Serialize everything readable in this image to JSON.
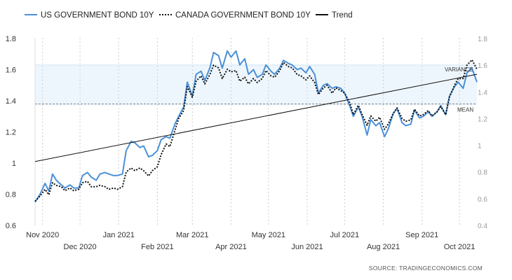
{
  "chart_data": {
    "type": "line",
    "title": "",
    "legend_position": "top-left",
    "grid": "vertical dashed",
    "source": "SOURCE:  TRADINGECONOMICS.COM",
    "x_range": [
      "2020-10-26",
      "2021-10-15"
    ],
    "x_ticks": [
      {
        "label": "Nov 2020",
        "date": "2020-11-01"
      },
      {
        "label": "Dec 2020",
        "date": "2020-12-01"
      },
      {
        "label": "Jan 2021",
        "date": "2021-01-01"
      },
      {
        "label": "Feb 2021",
        "date": "2021-02-01"
      },
      {
        "label": "Mar 2021",
        "date": "2021-03-01"
      },
      {
        "label": "Apr 2021",
        "date": "2021-04-01"
      },
      {
        "label": "May 2021",
        "date": "2021-05-01"
      },
      {
        "label": "Jun 2021",
        "date": "2021-06-01"
      },
      {
        "label": "Jul 2021",
        "date": "2021-07-01"
      },
      {
        "label": "Aug 2021",
        "date": "2021-08-01"
      },
      {
        "label": "Sep 2021",
        "date": "2021-09-01"
      },
      {
        "label": "Oct 2021",
        "date": "2021-10-01"
      }
    ],
    "y_left": {
      "min": 0.6,
      "max": 1.8,
      "ticks": [
        "1.8",
        "1.6",
        "1.4",
        "1.2",
        "1",
        "0.8",
        "0.6"
      ]
    },
    "y_right": {
      "min": 0.4,
      "max": 1.8,
      "ticks": [
        "1.8",
        "1.6",
        "1.4",
        "1.2",
        "1",
        "0.8",
        "0.6",
        "0.4"
      ]
    },
    "variance_band": [
      1.37,
      1.63
    ],
    "mean": 1.38,
    "annotations": {
      "variance": "VARIANCE",
      "mean": "MEAN"
    },
    "trend": {
      "start": [
        "2020-10-26",
        1.01
      ],
      "end": [
        "2021-10-15",
        1.57
      ]
    },
    "series": [
      {
        "name": "US GOVERNMENT BOND 10Y",
        "axis": "left",
        "color": "#4a90d9",
        "style": "solid",
        "points": [
          [
            "2020-10-26",
            0.75
          ],
          [
            "2020-10-30",
            0.8
          ],
          [
            "2020-11-03",
            0.87
          ],
          [
            "2020-11-06",
            0.82
          ],
          [
            "2020-11-09",
            0.93
          ],
          [
            "2020-11-12",
            0.89
          ],
          [
            "2020-11-16",
            0.86
          ],
          [
            "2020-11-19",
            0.84
          ],
          [
            "2020-11-23",
            0.86
          ],
          [
            "2020-11-26",
            0.84
          ],
          [
            "2020-11-30",
            0.84
          ],
          [
            "2020-12-03",
            0.92
          ],
          [
            "2020-12-07",
            0.94
          ],
          [
            "2020-12-10",
            0.91
          ],
          [
            "2020-12-14",
            0.89
          ],
          [
            "2020-12-17",
            0.93
          ],
          [
            "2020-12-21",
            0.94
          ],
          [
            "2020-12-24",
            0.93
          ],
          [
            "2020-12-28",
            0.92
          ],
          [
            "2020-12-31",
            0.92
          ],
          [
            "2021-01-04",
            0.93
          ],
          [
            "2021-01-07",
            1.08
          ],
          [
            "2021-01-11",
            1.14
          ],
          [
            "2021-01-14",
            1.13
          ],
          [
            "2021-01-18",
            1.1
          ],
          [
            "2021-01-21",
            1.11
          ],
          [
            "2021-01-25",
            1.04
          ],
          [
            "2021-01-28",
            1.05
          ],
          [
            "2021-02-01",
            1.08
          ],
          [
            "2021-02-04",
            1.15
          ],
          [
            "2021-02-08",
            1.17
          ],
          [
            "2021-02-11",
            1.16
          ],
          [
            "2021-02-15",
            1.25
          ],
          [
            "2021-02-18",
            1.3
          ],
          [
            "2021-02-22",
            1.36
          ],
          [
            "2021-02-25",
            1.52
          ],
          [
            "2021-03-01",
            1.43
          ],
          [
            "2021-03-04",
            1.57
          ],
          [
            "2021-03-08",
            1.59
          ],
          [
            "2021-03-11",
            1.53
          ],
          [
            "2021-03-15",
            1.61
          ],
          [
            "2021-03-18",
            1.71
          ],
          [
            "2021-03-22",
            1.69
          ],
          [
            "2021-03-25",
            1.61
          ],
          [
            "2021-03-29",
            1.72
          ],
          [
            "2021-04-01",
            1.68
          ],
          [
            "2021-04-05",
            1.72
          ],
          [
            "2021-04-08",
            1.63
          ],
          [
            "2021-04-12",
            1.67
          ],
          [
            "2021-04-15",
            1.57
          ],
          [
            "2021-04-19",
            1.6
          ],
          [
            "2021-04-22",
            1.55
          ],
          [
            "2021-04-26",
            1.57
          ],
          [
            "2021-04-29",
            1.63
          ],
          [
            "2021-05-03",
            1.59
          ],
          [
            "2021-05-06",
            1.57
          ],
          [
            "2021-05-10",
            1.61
          ],
          [
            "2021-05-13",
            1.66
          ],
          [
            "2021-05-17",
            1.64
          ],
          [
            "2021-05-20",
            1.63
          ],
          [
            "2021-05-24",
            1.6
          ],
          [
            "2021-05-27",
            1.61
          ],
          [
            "2021-05-31",
            1.58
          ],
          [
            "2021-06-03",
            1.62
          ],
          [
            "2021-06-07",
            1.57
          ],
          [
            "2021-06-10",
            1.45
          ],
          [
            "2021-06-14",
            1.5
          ],
          [
            "2021-06-17",
            1.51
          ],
          [
            "2021-06-21",
            1.48
          ],
          [
            "2021-06-24",
            1.49
          ],
          [
            "2021-06-28",
            1.48
          ],
          [
            "2021-07-01",
            1.45
          ],
          [
            "2021-07-05",
            1.37
          ],
          [
            "2021-07-08",
            1.3
          ],
          [
            "2021-07-12",
            1.36
          ],
          [
            "2021-07-15",
            1.3
          ],
          [
            "2021-07-19",
            1.18
          ],
          [
            "2021-07-22",
            1.28
          ],
          [
            "2021-07-26",
            1.24
          ],
          [
            "2021-07-29",
            1.26
          ],
          [
            "2021-08-02",
            1.17
          ],
          [
            "2021-08-05",
            1.22
          ],
          [
            "2021-08-09",
            1.32
          ],
          [
            "2021-08-12",
            1.35
          ],
          [
            "2021-08-16",
            1.26
          ],
          [
            "2021-08-19",
            1.24
          ],
          [
            "2021-08-23",
            1.25
          ],
          [
            "2021-08-26",
            1.34
          ],
          [
            "2021-08-30",
            1.29
          ],
          [
            "2021-09-02",
            1.3
          ],
          [
            "2021-09-06",
            1.33
          ],
          [
            "2021-09-09",
            1.3
          ],
          [
            "2021-09-13",
            1.33
          ],
          [
            "2021-09-16",
            1.37
          ],
          [
            "2021-09-20",
            1.31
          ],
          [
            "2021-09-23",
            1.43
          ],
          [
            "2021-09-27",
            1.49
          ],
          [
            "2021-09-30",
            1.52
          ],
          [
            "2021-10-04",
            1.48
          ],
          [
            "2021-10-07",
            1.58
          ],
          [
            "2021-10-11",
            1.61
          ],
          [
            "2021-10-15",
            1.52
          ]
        ]
      },
      {
        "name": "CANADA GOVERNMENT BOND 10Y",
        "axis": "right",
        "color": "#111111",
        "style": "dotted",
        "points": [
          [
            "2020-10-26",
            0.58
          ],
          [
            "2020-10-30",
            0.62
          ],
          [
            "2020-11-03",
            0.67
          ],
          [
            "2020-11-06",
            0.63
          ],
          [
            "2020-11-09",
            0.72
          ],
          [
            "2020-11-12",
            0.7
          ],
          [
            "2020-11-16",
            0.69
          ],
          [
            "2020-11-19",
            0.66
          ],
          [
            "2020-11-23",
            0.68
          ],
          [
            "2020-11-26",
            0.66
          ],
          [
            "2020-11-30",
            0.67
          ],
          [
            "2020-12-03",
            0.72
          ],
          [
            "2020-12-07",
            0.73
          ],
          [
            "2020-12-10",
            0.69
          ],
          [
            "2020-12-14",
            0.69
          ],
          [
            "2020-12-17",
            0.7
          ],
          [
            "2020-12-21",
            0.69
          ],
          [
            "2020-12-24",
            0.67
          ],
          [
            "2020-12-28",
            0.68
          ],
          [
            "2020-12-31",
            0.67
          ],
          [
            "2021-01-04",
            0.69
          ],
          [
            "2021-01-07",
            0.8
          ],
          [
            "2021-01-11",
            0.83
          ],
          [
            "2021-01-14",
            0.81
          ],
          [
            "2021-01-18",
            0.83
          ],
          [
            "2021-01-21",
            0.81
          ],
          [
            "2021-01-25",
            0.77
          ],
          [
            "2021-01-28",
            0.81
          ],
          [
            "2021-02-01",
            0.84
          ],
          [
            "2021-02-04",
            0.93
          ],
          [
            "2021-02-08",
            1.01
          ],
          [
            "2021-02-11",
            0.99
          ],
          [
            "2021-02-15",
            1.11
          ],
          [
            "2021-02-18",
            1.2
          ],
          [
            "2021-02-22",
            1.26
          ],
          [
            "2021-02-25",
            1.44
          ],
          [
            "2021-03-01",
            1.36
          ],
          [
            "2021-03-04",
            1.48
          ],
          [
            "2021-03-08",
            1.52
          ],
          [
            "2021-03-11",
            1.46
          ],
          [
            "2021-03-15",
            1.53
          ],
          [
            "2021-03-18",
            1.6
          ],
          [
            "2021-03-22",
            1.58
          ],
          [
            "2021-03-25",
            1.5
          ],
          [
            "2021-03-29",
            1.57
          ],
          [
            "2021-04-01",
            1.55
          ],
          [
            "2021-04-05",
            1.56
          ],
          [
            "2021-04-08",
            1.48
          ],
          [
            "2021-04-12",
            1.51
          ],
          [
            "2021-04-15",
            1.46
          ],
          [
            "2021-04-19",
            1.5
          ],
          [
            "2021-04-22",
            1.47
          ],
          [
            "2021-04-26",
            1.5
          ],
          [
            "2021-04-29",
            1.56
          ],
          [
            "2021-05-03",
            1.52
          ],
          [
            "2021-05-06",
            1.51
          ],
          [
            "2021-05-10",
            1.56
          ],
          [
            "2021-05-13",
            1.62
          ],
          [
            "2021-05-17",
            1.59
          ],
          [
            "2021-05-20",
            1.58
          ],
          [
            "2021-05-24",
            1.53
          ],
          [
            "2021-05-27",
            1.52
          ],
          [
            "2021-05-31",
            1.49
          ],
          [
            "2021-06-03",
            1.52
          ],
          [
            "2021-06-07",
            1.47
          ],
          [
            "2021-06-10",
            1.38
          ],
          [
            "2021-06-14",
            1.43
          ],
          [
            "2021-06-17",
            1.45
          ],
          [
            "2021-06-21",
            1.39
          ],
          [
            "2021-06-24",
            1.43
          ],
          [
            "2021-06-28",
            1.41
          ],
          [
            "2021-07-01",
            1.39
          ],
          [
            "2021-07-05",
            1.32
          ],
          [
            "2021-07-08",
            1.23
          ],
          [
            "2021-07-12",
            1.3
          ],
          [
            "2021-07-15",
            1.23
          ],
          [
            "2021-07-19",
            1.15
          ],
          [
            "2021-07-22",
            1.22
          ],
          [
            "2021-07-26",
            1.18
          ],
          [
            "2021-07-29",
            1.21
          ],
          [
            "2021-08-02",
            1.12
          ],
          [
            "2021-08-05",
            1.16
          ],
          [
            "2021-08-09",
            1.24
          ],
          [
            "2021-08-12",
            1.28
          ],
          [
            "2021-08-16",
            1.2
          ],
          [
            "2021-08-19",
            1.18
          ],
          [
            "2021-08-23",
            1.19
          ],
          [
            "2021-08-26",
            1.27
          ],
          [
            "2021-08-30",
            1.22
          ],
          [
            "2021-09-02",
            1.23
          ],
          [
            "2021-09-06",
            1.26
          ],
          [
            "2021-09-09",
            1.22
          ],
          [
            "2021-09-13",
            1.25
          ],
          [
            "2021-09-16",
            1.29
          ],
          [
            "2021-09-20",
            1.23
          ],
          [
            "2021-09-23",
            1.36
          ],
          [
            "2021-09-27",
            1.45
          ],
          [
            "2021-09-30",
            1.5
          ],
          [
            "2021-10-04",
            1.5
          ],
          [
            "2021-10-07",
            1.6
          ],
          [
            "2021-10-11",
            1.64
          ],
          [
            "2021-10-15",
            1.57
          ]
        ]
      }
    ]
  },
  "legend": [
    {
      "label": "US GOVERNMENT BOND 10Y",
      "color": "#4a90d9",
      "style": "solid"
    },
    {
      "label": "CANADA GOVERNMENT BOND 10Y",
      "color": "#111111",
      "style": "dotted"
    },
    {
      "label": "Trend",
      "color": "#111111",
      "style": "solid"
    }
  ]
}
